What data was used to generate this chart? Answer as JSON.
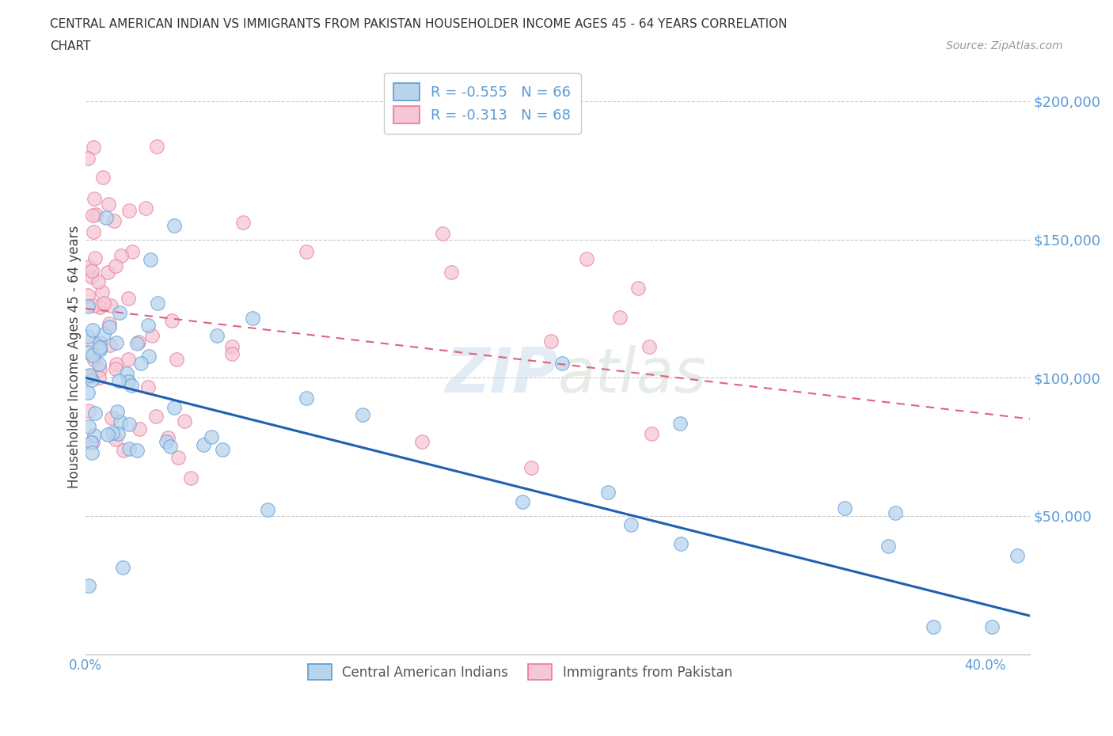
{
  "title_line1": "CENTRAL AMERICAN INDIAN VS IMMIGRANTS FROM PAKISTAN HOUSEHOLDER INCOME AGES 45 - 64 YEARS CORRELATION",
  "title_line2": "CHART",
  "source_text": "Source: ZipAtlas.com",
  "ylabel": "Householder Income Ages 45 - 64 years",
  "watermark_zip": "ZIP",
  "watermark_atlas": "atlas",
  "legend_label1": "R = -0.555   N = 66",
  "legend_label2": "R = -0.313   N = 68",
  "legend_bottom1": "Central American Indians",
  "legend_bottom2": "Immigrants from Pakistan",
  "blue_face": "#b8d4ed",
  "blue_edge": "#5b9bd5",
  "pink_face": "#f5c6d4",
  "pink_edge": "#e8799a",
  "blue_line_color": "#2060b0",
  "pink_line_color": "#e06080",
  "grid_color": "#bbbbbb",
  "background_color": "#ffffff",
  "tick_color": "#5b9bd5",
  "ylabel_color": "#444444",
  "blue_line_intercept": 100000,
  "blue_line_slope": -205000,
  "pink_line_intercept": 125000,
  "pink_line_slope": -95000,
  "xlim_max": 0.42,
  "ylim_max": 215000,
  "seed": 17
}
